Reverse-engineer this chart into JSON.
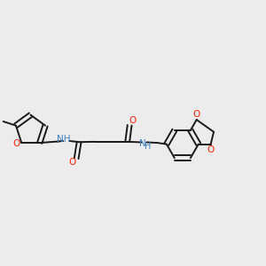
{
  "background_color": "#ececec",
  "bond_color": "#1a1a1a",
  "nitrogen_color": "#4080c0",
  "oxygen_color": "#ff2200",
  "figsize": [
    3.0,
    3.0
  ],
  "dpi": 100,
  "xlim": [
    0.0,
    1.0
  ],
  "ylim": [
    0.3,
    0.75
  ]
}
